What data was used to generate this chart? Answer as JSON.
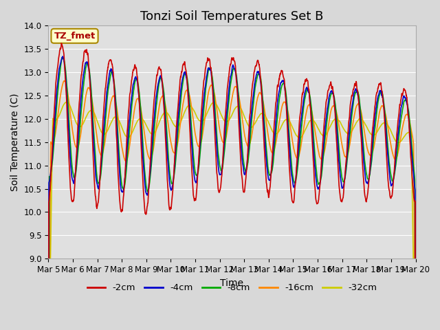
{
  "title": "Tonzi Soil Temperatures Set B",
  "xlabel": "Time",
  "ylabel": "Soil Temperature (C)",
  "ylim": [
    9.0,
    14.0
  ],
  "yticks": [
    9.0,
    9.5,
    10.0,
    10.5,
    11.0,
    11.5,
    12.0,
    12.5,
    13.0,
    13.5,
    14.0
  ],
  "xtick_labels": [
    "Mar 5",
    "Mar 6",
    "Mar 7",
    "Mar 8",
    "Mar 9",
    "Mar 10",
    "Mar 11",
    "Mar 12",
    "Mar 13",
    "Mar 14",
    "Mar 15",
    "Mar 16",
    "Mar 17",
    "Mar 18",
    "Mar 19",
    "Mar 20"
  ],
  "series_colors": [
    "#cc0000",
    "#0000cc",
    "#00aa00",
    "#ff8800",
    "#cccc00"
  ],
  "series_labels": [
    "-2cm",
    "-4cm",
    "-8cm",
    "-16cm",
    "-32cm"
  ],
  "series_linewidths": [
    1.2,
    1.2,
    1.2,
    1.2,
    1.2
  ],
  "legend_label": "TZ_fmet",
  "legend_bg": "#ffffcc",
  "legend_border": "#aa8800",
  "bg_color": "#d8d8d8",
  "plot_bg": "#e0e0e0",
  "grid_color": "#ffffff",
  "title_fontsize": 13,
  "axis_fontsize": 10,
  "tick_fontsize": 8.5
}
